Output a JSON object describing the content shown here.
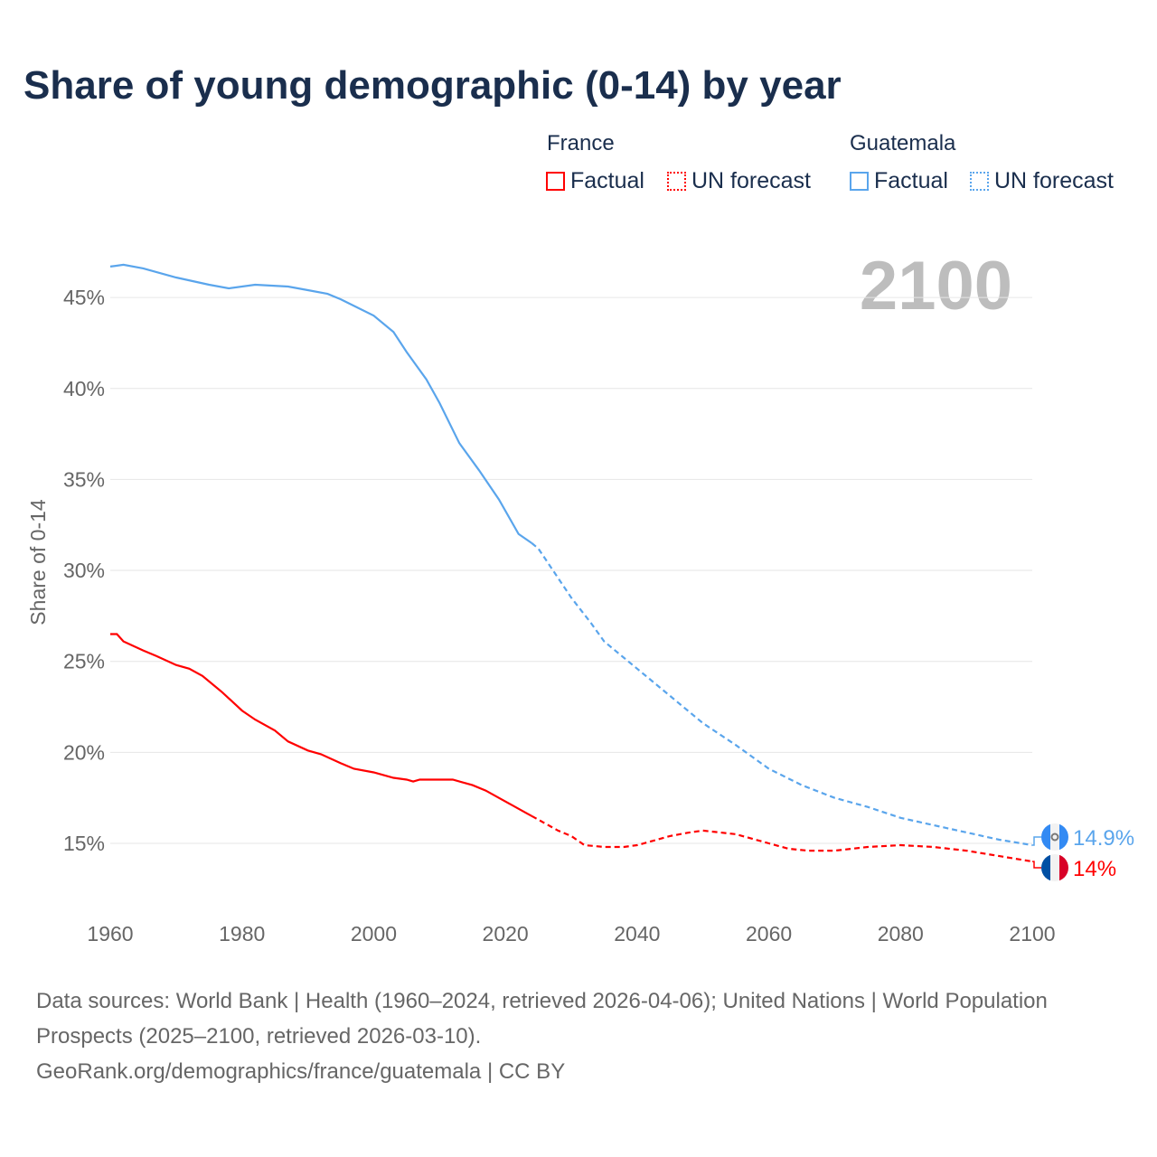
{
  "title": "Share of young demographic (0-14) by year",
  "legend": {
    "groups": [
      {
        "name": "France",
        "factual": "Factual",
        "forecast": "UN forecast",
        "color": "#ff0000"
      },
      {
        "name": "Guatemala",
        "factual": "Factual",
        "forecast": "UN forecast",
        "color": "#5aa5ec"
      }
    ]
  },
  "footer": {
    "sources": "Data sources: World Bank | Health (1960–2024, retrieved 2026-04-06); United Nations | World Population Prospects (2025–2100, retrieved 2026-03-10).",
    "link": "GeoRank.org/demographics/france/guatemala | CC BY"
  },
  "chart_data": {
    "type": "line",
    "title": "Share of young demographic (0-14) by year",
    "xlabel": "",
    "ylabel": "Share of 0-14",
    "xlim": [
      1960,
      2100
    ],
    "ylim": [
      12,
      47
    ],
    "x_ticks": [
      "1960",
      "1980",
      "2000",
      "2020",
      "2040",
      "2060",
      "2080",
      "2100"
    ],
    "y_ticks": [
      "15%",
      "20%",
      "25%",
      "30%",
      "35%",
      "40%",
      "45%"
    ],
    "y_tick_values": [
      15,
      20,
      25,
      30,
      35,
      40,
      45
    ],
    "grid": true,
    "current_year_label": "2100",
    "forecast_start": 2024,
    "series": [
      {
        "name": "Guatemala",
        "color": "#5aa5ec",
        "end_label": "14.9%",
        "x": [
          1960,
          1962,
          1965,
          1970,
          1975,
          1978,
          1982,
          1987,
          1990,
          1993,
          1995,
          2000,
          2003,
          2005,
          2008,
          2010,
          2013,
          2016,
          2019,
          2022,
          2024,
          2025,
          2030,
          2033,
          2035,
          2040,
          2045,
          2050,
          2055,
          2060,
          2065,
          2070,
          2075,
          2080,
          2085,
          2090,
          2095,
          2100
        ],
        "y": [
          46.7,
          46.8,
          46.6,
          46.1,
          45.7,
          45.5,
          45.7,
          45.6,
          45.4,
          45.2,
          44.9,
          44.0,
          43.1,
          42.0,
          40.5,
          39.2,
          37.0,
          35.5,
          33.9,
          32.0,
          31.5,
          31.2,
          28.5,
          27.1,
          26.1,
          24.6,
          23.1,
          21.6,
          20.4,
          19.1,
          18.2,
          17.5,
          17.0,
          16.4,
          16.0,
          15.6,
          15.2,
          14.9
        ]
      },
      {
        "name": "France",
        "color": "#ff0000",
        "end_label": "14%",
        "x": [
          1960,
          1961,
          1962,
          1965,
          1967,
          1970,
          1972,
          1974,
          1977,
          1980,
          1982,
          1985,
          1987,
          1990,
          1992,
          1995,
          1997,
          2000,
          2003,
          2005,
          2006,
          2007,
          2010,
          2012,
          2015,
          2017,
          2019,
          2021,
          2023,
          2024,
          2025,
          2028,
          2030,
          2032,
          2035,
          2038,
          2040,
          2043,
          2045,
          2048,
          2050,
          2055,
          2060,
          2063,
          2066,
          2070,
          2075,
          2080,
          2085,
          2090,
          2095,
          2100
        ],
        "y": [
          26.5,
          26.5,
          26.1,
          25.6,
          25.3,
          24.8,
          24.6,
          24.2,
          23.3,
          22.3,
          21.8,
          21.2,
          20.6,
          20.1,
          19.9,
          19.4,
          19.1,
          18.9,
          18.6,
          18.5,
          18.4,
          18.5,
          18.5,
          18.5,
          18.2,
          17.9,
          17.5,
          17.1,
          16.7,
          16.5,
          16.3,
          15.7,
          15.4,
          14.9,
          14.8,
          14.8,
          14.9,
          15.2,
          15.4,
          15.6,
          15.7,
          15.5,
          15.0,
          14.7,
          14.6,
          14.6,
          14.8,
          14.9,
          14.8,
          14.6,
          14.3,
          14.0
        ]
      }
    ]
  }
}
